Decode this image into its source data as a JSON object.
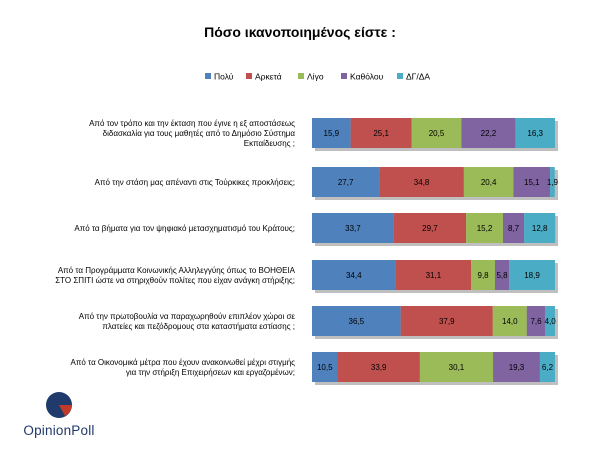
{
  "chart_data": {
    "type": "bar",
    "stacked": true,
    "orientation": "horizontal",
    "title": "Πόσο ικανοποιημένος είστε :",
    "legend_position": "top",
    "xlim": [
      0,
      100
    ],
    "categories": [
      "Από τον τρόπο και την έκταση που έγινε η εξ αποστάσεως διδασκαλία για τους μαθητές από το Δημόσιο Σύστημα Εκπαίδευσης ;",
      "Από την στάση μας απέναντι στις Τούρκικες προκλήσεις;",
      "Από τα βήματα για τον ψηφιακό μετασχηματισμό του Κράτους;",
      "Από τα Προγράμματα Κοινωνικής Αλληλεγγύης όπως το ΒΟΗΘΕΙΑ ΣΤΟ ΣΠΙΤΙ ώστε να στηριχθούν πολίτες που είχαν ανάγκη στήριξης;",
      "Από την πρωτοβουλία να παραχωρηθούν επιπλέον χώροι σε πλατείες και πεζόδρομους στα καταστήματα εστίασης ;",
      "Από τα Οικονομικά μέτρα που έχουν ανακοινωθεί μέχρι στιγμής για την στήριξη Επιχειρήσεων και εργαζομένων;"
    ],
    "category_lines": [
      [
        "Από τον τρόπο και την έκταση που έγινε η εξ αποστάσεως",
        "διδασκαλία για τους μαθητές από το Δημόσιο Σύστημα",
        "Εκπαίδευσης ;"
      ],
      [
        "Από την στάση μας απέναντι στις Τούρκικες προκλήσεις;"
      ],
      [
        "Από τα βήματα για τον ψηφιακό μετασχηματισμό του Κράτους;"
      ],
      [
        "Από τα Προγράμματα Κοινωνικής Αλληλεγγύης όπως το ΒΟΗΘΕΙΑ",
        "ΣΤΟ ΣΠΙΤΙ ώστε να στηριχθούν πολίτες που είχαν ανάγκη στήριξης;"
      ],
      [
        "Από την πρωτοβουλία να παραχωρηθούν επιπλέον χώροι σε",
        "πλατείες και πεζόδρομους στα  καταστήματα εστίασης ;"
      ],
      [
        "Από τα Οικονομικά μέτρα που έχουν ανακοινωθεί μέχρι στιγμής",
        "για την στήριξη Επιχειρήσεων και εργαζομένων;"
      ]
    ],
    "series": [
      {
        "name": "Πολύ",
        "color": "#4f81bd",
        "values": [
          15.9,
          27.7,
          33.7,
          34.4,
          36.5,
          10.5
        ]
      },
      {
        "name": "Αρκετά",
        "color": "#c0504d",
        "values": [
          25.1,
          34.8,
          29.7,
          31.1,
          37.9,
          33.9
        ]
      },
      {
        "name": "Λίγο",
        "color": "#9bbb59",
        "values": [
          20.5,
          20.4,
          15.2,
          9.8,
          14.0,
          30.1
        ]
      },
      {
        "name": "Καθόλου",
        "color": "#8064a2",
        "values": [
          22.2,
          15.1,
          8.7,
          5.8,
          7.6,
          19.3
        ]
      },
      {
        "name": "ΔΓ/ΔΑ",
        "color": "#4bacc6",
        "values": [
          16.3,
          1.9,
          12.8,
          18.9,
          4.0,
          6.2
        ]
      }
    ],
    "value_labels": [
      [
        "15,9",
        "25,1",
        "20,5",
        "22,2",
        "16,3"
      ],
      [
        "27,7",
        "34,8",
        "20,4",
        "15,1",
        "1,9"
      ],
      [
        "33,7",
        "29,7",
        "15,2",
        "8,7",
        "12,8"
      ],
      [
        "34,4",
        "31,1",
        "9,8",
        "5,8",
        "18,9"
      ],
      [
        "36,5",
        "37,9",
        "14,0",
        "7,6",
        "4,0"
      ],
      [
        "10,5",
        "33,9",
        "30,1",
        "19,3",
        "6,2"
      ]
    ]
  },
  "logo": {
    "text": "OpinionPoll",
    "colors": {
      "circle": "#1f3a6b",
      "accent": "#c0392b"
    }
  }
}
